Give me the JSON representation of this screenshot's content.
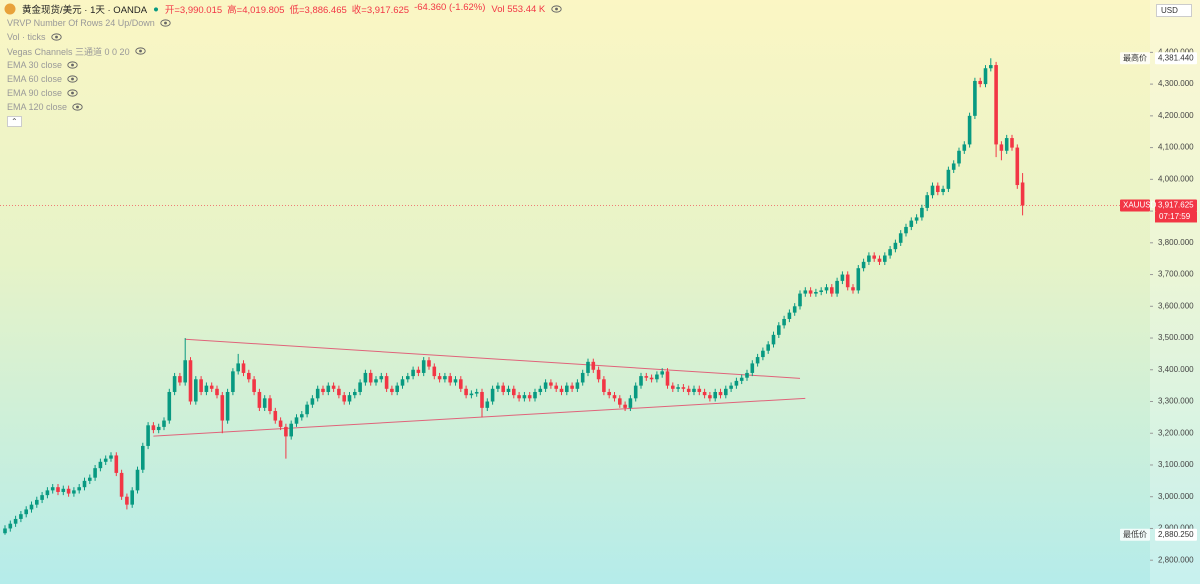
{
  "chart_data": {
    "type": "candlestick",
    "title": "黄金现货/美元 · 1天 · OANDA",
    "ohlc_text": [
      "开=3,990.015",
      "高=4,019.805",
      "低=3,886.465",
      "收=3,917.625",
      "-64.360 (-1.62%)"
    ],
    "volume_text": "Vol 553.44 K",
    "indicators": [
      "VRVP Number Of Rows 24 Up/Down",
      "Vol · ticks",
      "Vegas Channels 三通道 0 0 20",
      "EMA 30 close",
      "EMA 60 close",
      "EMA 90 close",
      "EMA 120 close"
    ],
    "currency": "USD",
    "colors": {
      "up": "#089981",
      "down": "#f23645"
    },
    "ylim": [
      2725,
      4565
    ],
    "yticks": [
      {
        "value": 2800,
        "label": "2,800.000"
      },
      {
        "value": 2900,
        "label": "2,900.000"
      },
      {
        "value": 3000,
        "label": "3,000.000"
      },
      {
        "value": 3100,
        "label": "3,100.000"
      },
      {
        "value": 3200,
        "label": "3,200.000"
      },
      {
        "value": 3300,
        "label": "3,300.000"
      },
      {
        "value": 3400,
        "label": "3,400.000"
      },
      {
        "value": 3500,
        "label": "3,500.000"
      },
      {
        "value": 3600,
        "label": "3,600.000"
      },
      {
        "value": 3700,
        "label": "3,700.000"
      },
      {
        "value": 3800,
        "label": "3,800.000"
      },
      {
        "value": 3900,
        "label": "3,900.000"
      },
      {
        "value": 4000,
        "label": "4,000.000"
      },
      {
        "value": 4100,
        "label": "4,100.000"
      },
      {
        "value": 4200,
        "label": "4,200.000"
      },
      {
        "value": 4300,
        "label": "4,300.000"
      },
      {
        "value": 4400,
        "label": "4,400.000"
      }
    ],
    "price_high": {
      "label": "最高价",
      "value": 4381.44,
      "value_label": "4,381.440"
    },
    "price_last": {
      "label": "XAUUSD",
      "value": 3917.625,
      "value_label": "3,917.625",
      "countdown": "07:17:59"
    },
    "price_low": {
      "label": "最低价",
      "value": 2880.25,
      "value_label": "2,880.250"
    },
    "trendlines": [
      {
        "x": [
          34,
          150
        ],
        "y": [
          3496,
          3373
        ]
      },
      {
        "x": [
          28,
          151
        ],
        "y": [
          3191,
          3310
        ]
      }
    ],
    "open": [
      2885,
      2900,
      2915,
      2930,
      2945,
      2960,
      2975,
      2990,
      3005,
      3020,
      3030,
      3015,
      3025,
      3010,
      3020,
      3030,
      3050,
      3060,
      3090,
      3110,
      3120,
      3130,
      3075,
      3000,
      2975,
      3020,
      3085,
      3160,
      3225,
      3210,
      3220,
      3240,
      3330,
      3380,
      3360,
      3430,
      3300,
      3370,
      3330,
      3350,
      3340,
      3320,
      3240,
      3330,
      3395,
      3420,
      3390,
      3370,
      3330,
      3280,
      3310,
      3270,
      3240,
      3220,
      3190,
      3230,
      3250,
      3260,
      3290,
      3310,
      3340,
      3330,
      3350,
      3340,
      3320,
      3300,
      3320,
      3330,
      3360,
      3390,
      3360,
      3370,
      3380,
      3340,
      3330,
      3350,
      3370,
      3380,
      3400,
      3390,
      3430,
      3410,
      3380,
      3370,
      3380,
      3360,
      3370,
      3340,
      3320,
      3325,
      3330,
      3280,
      3300,
      3340,
      3350,
      3330,
      3340,
      3320,
      3310,
      3320,
      3310,
      3330,
      3340,
      3360,
      3350,
      3340,
      3330,
      3350,
      3340,
      3360,
      3390,
      3425,
      3400,
      3370,
      3330,
      3320,
      3310,
      3290,
      3280,
      3310,
      3350,
      3380,
      3375,
      3370,
      3385,
      3395,
      3350,
      3340,
      3345,
      3340,
      3330,
      3340,
      3330,
      3320,
      3310,
      3330,
      3320,
      3340,
      3350,
      3365,
      3375,
      3390,
      3420,
      3440,
      3460,
      3480,
      3510,
      3540,
      3560,
      3580,
      3600,
      3640,
      3650,
      3640,
      3645,
      3650,
      3660,
      3640,
      3680,
      3700,
      3660,
      3650,
      3720,
      3740,
      3760,
      3750,
      3740,
      3760,
      3780,
      3800,
      3830,
      3850,
      3870,
      3880,
      3910,
      3950,
      3980,
      3960,
      3970,
      4030,
      4050,
      4090,
      4110,
      4200,
      4310,
      4300,
      4350,
      4360,
      4110,
      4090,
      4130,
      4100,
      3990.015
    ],
    "high": [
      2910,
      2925,
      2940,
      2955,
      2970,
      2985,
      3000,
      3015,
      3030,
      3040,
      3040,
      3035,
      3035,
      3030,
      3040,
      3060,
      3070,
      3100,
      3120,
      3130,
      3140,
      3140,
      3085,
      3010,
      3030,
      3095,
      3170,
      3235,
      3235,
      3230,
      3250,
      3340,
      3390,
      3390,
      3500,
      3440,
      3380,
      3380,
      3360,
      3360,
      3350,
      3330,
      3340,
      3405,
      3450,
      3430,
      3400,
      3380,
      3340,
      3320,
      3320,
      3280,
      3250,
      3230,
      3240,
      3260,
      3270,
      3300,
      3320,
      3350,
      3350,
      3360,
      3360,
      3350,
      3330,
      3330,
      3340,
      3370,
      3400,
      3400,
      3380,
      3390,
      3390,
      3350,
      3360,
      3380,
      3390,
      3410,
      3410,
      3440,
      3440,
      3420,
      3390,
      3390,
      3390,
      3380,
      3380,
      3350,
      3335,
      3340,
      3340,
      3310,
      3350,
      3360,
      3360,
      3350,
      3350,
      3330,
      3330,
      3330,
      3340,
      3350,
      3370,
      3370,
      3360,
      3350,
      3360,
      3360,
      3370,
      3400,
      3435,
      3435,
      3410,
      3380,
      3340,
      3330,
      3320,
      3300,
      3320,
      3360,
      3390,
      3390,
      3385,
      3395,
      3405,
      3405,
      3360,
      3355,
      3355,
      3350,
      3350,
      3350,
      3340,
      3330,
      3340,
      3340,
      3350,
      3360,
      3375,
      3385,
      3400,
      3430,
      3450,
      3470,
      3490,
      3520,
      3550,
      3570,
      3590,
      3610,
      3650,
      3660,
      3660,
      3655,
      3660,
      3670,
      3670,
      3690,
      3710,
      3710,
      3670,
      3730,
      3750,
      3770,
      3770,
      3760,
      3770,
      3790,
      3810,
      3840,
      3860,
      3880,
      3890,
      3920,
      3960,
      3990,
      3990,
      3980,
      4040,
      4060,
      4100,
      4120,
      4210,
      4320,
      4320,
      4360,
      4381.44,
      4370,
      4120,
      4140,
      4140,
      4110,
      4019.805
    ],
    "low": [
      2880.25,
      2890,
      2905,
      2920,
      2935,
      2950,
      2965,
      2980,
      2995,
      3010,
      3005,
      3005,
      3000,
      3000,
      3010,
      3020,
      3040,
      3050,
      3080,
      3100,
      3110,
      3065,
      2990,
      2960,
      2965,
      3010,
      3075,
      3150,
      3200,
      3200,
      3210,
      3230,
      3320,
      3350,
      3350,
      3290,
      3290,
      3320,
      3320,
      3330,
      3310,
      3200,
      3230,
      3320,
      3385,
      3380,
      3360,
      3320,
      3270,
      3270,
      3260,
      3230,
      3210,
      3120,
      3180,
      3220,
      3240,
      3250,
      3280,
      3300,
      3320,
      3320,
      3330,
      3310,
      3290,
      3290,
      3310,
      3320,
      3350,
      3350,
      3350,
      3360,
      3330,
      3320,
      3320,
      3340,
      3360,
      3370,
      3380,
      3380,
      3400,
      3370,
      3360,
      3360,
      3350,
      3350,
      3330,
      3310,
      3310,
      3315,
      3250,
      3270,
      3290,
      3330,
      3320,
      3320,
      3310,
      3300,
      3300,
      3300,
      3300,
      3320,
      3330,
      3340,
      3330,
      3320,
      3320,
      3330,
      3330,
      3350,
      3380,
      3390,
      3360,
      3320,
      3310,
      3300,
      3280,
      3270,
      3270,
      3300,
      3340,
      3365,
      3360,
      3360,
      3375,
      3340,
      3330,
      3330,
      3330,
      3320,
      3320,
      3320,
      3310,
      3300,
      3300,
      3310,
      3310,
      3330,
      3340,
      3355,
      3365,
      3380,
      3410,
      3430,
      3450,
      3470,
      3500,
      3530,
      3550,
      3570,
      3590,
      3630,
      3630,
      3630,
      3635,
      3640,
      3630,
      3630,
      3670,
      3650,
      3640,
      3640,
      3710,
      3730,
      3740,
      3730,
      3730,
      3750,
      3770,
      3790,
      3820,
      3840,
      3860,
      3870,
      3900,
      3940,
      3950,
      3950,
      3960,
      4020,
      4040,
      4080,
      4100,
      4190,
      4290,
      4290,
      4340,
      4070,
      4060,
      4080,
      4090,
      3970,
      3886.465
    ],
    "close": [
      2900,
      2915,
      2930,
      2945,
      2960,
      2975,
      2990,
      3005,
      3020,
      3030,
      3015,
      3025,
      3010,
      3020,
      3030,
      3050,
      3060,
      3090,
      3110,
      3120,
      3130,
      3075,
      3000,
      2975,
      3020,
      3085,
      3160,
      3225,
      3210,
      3220,
      3240,
      3330,
      3380,
      3360,
      3430,
      3300,
      3370,
      3330,
      3350,
      3340,
      3320,
      3240,
      3330,
      3395,
      3420,
      3390,
      3370,
      3330,
      3280,
      3310,
      3270,
      3240,
      3220,
      3190,
      3230,
      3250,
      3260,
      3290,
      3310,
      3340,
      3330,
      3350,
      3340,
      3320,
      3300,
      3320,
      3330,
      3360,
      3390,
      3360,
      3370,
      3380,
      3340,
      3330,
      3350,
      3370,
      3380,
      3400,
      3390,
      3430,
      3410,
      3380,
      3370,
      3380,
      3360,
      3370,
      3340,
      3320,
      3325,
      3330,
      3280,
      3300,
      3340,
      3350,
      3330,
      3340,
      3320,
      3310,
      3320,
      3310,
      3330,
      3340,
      3360,
      3350,
      3340,
      3330,
      3350,
      3340,
      3360,
      3390,
      3425,
      3400,
      3370,
      3330,
      3320,
      3310,
      3290,
      3280,
      3310,
      3350,
      3380,
      3375,
      3370,
      3385,
      3395,
      3350,
      3340,
      3345,
      3340,
      3330,
      3340,
      3330,
      3320,
      3310,
      3330,
      3320,
      3340,
      3350,
      3365,
      3375,
      3390,
      3420,
      3440,
      3460,
      3480,
      3510,
      3540,
      3560,
      3580,
      3600,
      3640,
      3650,
      3640,
      3645,
      3650,
      3660,
      3640,
      3680,
      3700,
      3660,
      3650,
      3720,
      3740,
      3760,
      3750,
      3740,
      3760,
      3780,
      3800,
      3830,
      3850,
      3870,
      3880,
      3910,
      3950,
      3980,
      3960,
      3970,
      4030,
      4050,
      4090,
      4110,
      4200,
      4310,
      4300,
      4350,
      4360,
      4110,
      4090,
      4130,
      4100,
      3981.985,
      3917.625
    ]
  }
}
